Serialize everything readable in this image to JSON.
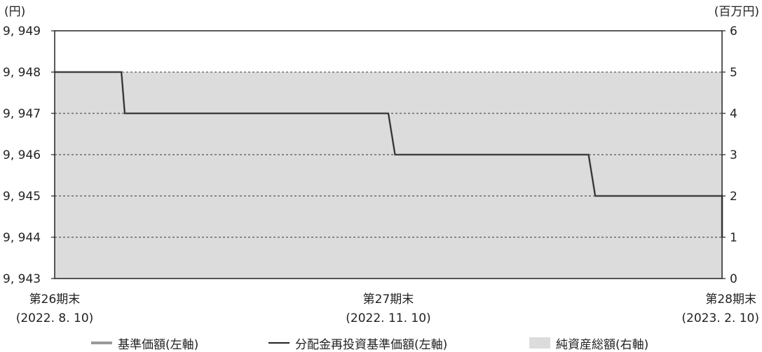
{
  "chart_data": {
    "type": "line",
    "left_axis_unit": "(円)",
    "right_axis_unit": "(百万円)",
    "left_ticks": [
      "9, 943",
      "9, 944",
      "9, 945",
      "9, 946",
      "9, 947",
      "9, 948",
      "9, 949"
    ],
    "right_ticks": [
      "0",
      "1",
      "2",
      "3",
      "4",
      "5",
      "6"
    ],
    "ylim_left": [
      9943,
      9949
    ],
    "ylim_right": [
      0,
      6
    ],
    "x_labels": [
      {
        "period": "第26期末",
        "date": "(2022. 8. 10)"
      },
      {
        "period": "第27期末",
        "date": "(2022. 11. 10)"
      },
      {
        "period": "第28期末",
        "date": "(2023. 2. 10)"
      }
    ],
    "grid": "dashed horizontal",
    "series": [
      {
        "name": "基準価額(左軸)",
        "axis": "left",
        "style": "gray-line",
        "color": "#9a9a9a",
        "values": [
          [
            0,
            9948
          ],
          [
            0.2,
            9948
          ],
          [
            0.21,
            9947
          ],
          [
            1,
            9947
          ],
          [
            1.02,
            9946
          ],
          [
            1.6,
            9946
          ],
          [
            1.62,
            9945
          ],
          [
            2,
            9945
          ],
          [
            2.02,
            9944
          ]
        ]
      },
      {
        "name": "分配金再投資基準価額(左軸)",
        "axis": "left",
        "style": "black-line",
        "color": "#222222",
        "values": [
          [
            0,
            9948
          ],
          [
            0.2,
            9948
          ],
          [
            0.21,
            9947
          ],
          [
            1,
            9947
          ],
          [
            1.02,
            9946
          ],
          [
            1.6,
            9946
          ],
          [
            1.62,
            9945
          ],
          [
            2,
            9945
          ],
          [
            2.02,
            9944
          ]
        ]
      },
      {
        "name": "純資産総額(右軸)",
        "axis": "right",
        "style": "area",
        "color": "#dcdcdc",
        "values": [
          [
            0,
            5
          ],
          [
            2.02,
            5
          ]
        ]
      }
    ],
    "legend": [
      {
        "label": "基準価額(左軸)",
        "swatch": "gray-line"
      },
      {
        "label": "分配金再投資基準価額(左軸)",
        "swatch": "black-line"
      },
      {
        "label": "純資産総額(右軸)",
        "swatch": "area"
      }
    ]
  }
}
